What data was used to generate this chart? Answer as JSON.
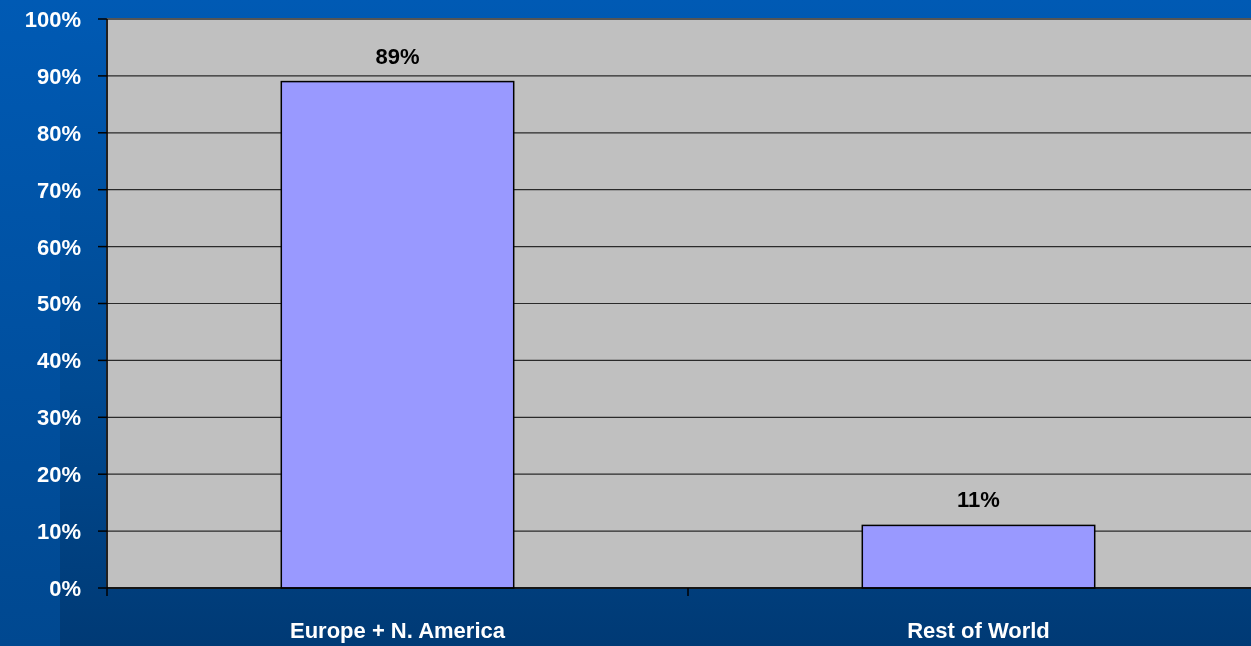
{
  "chart_data": {
    "type": "bar",
    "categories": [
      "Europe + N. America",
      "Rest of World"
    ],
    "values": [
      89,
      11
    ],
    "color": "#9999ff",
    "value_labels": [
      "89%",
      "11%"
    ],
    "ylim": [
      0,
      100
    ],
    "yticks": [
      {
        "value": 0,
        "label": "0%"
      },
      {
        "value": 10,
        "label": "10%"
      },
      {
        "value": 20,
        "label": "20%"
      },
      {
        "value": 30,
        "label": "30%"
      },
      {
        "value": 40,
        "label": "40%"
      },
      {
        "value": 50,
        "label": "50%"
      },
      {
        "value": 60,
        "label": "60%"
      },
      {
        "value": 70,
        "label": "70%"
      },
      {
        "value": 80,
        "label": "80%"
      },
      {
        "value": 90,
        "label": "90%"
      },
      {
        "value": 100,
        "label": "100%"
      }
    ],
    "grid": "y"
  }
}
